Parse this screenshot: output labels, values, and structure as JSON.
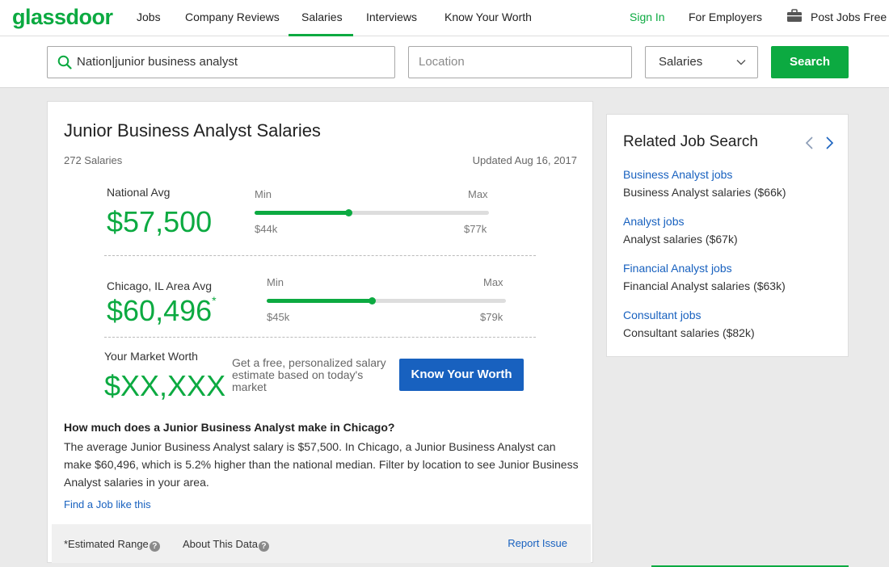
{
  "brand": {
    "logo": "glassdoor",
    "accent": "#0caa41",
    "link_color": "#1861bf"
  },
  "nav": {
    "items": [
      "Jobs",
      "Company Reviews",
      "Salaries",
      "Interviews",
      "Know Your Worth"
    ],
    "active": "Salaries",
    "sign_in": "Sign In",
    "for_employers": "For Employers",
    "post_jobs": "Post Jobs Free"
  },
  "search": {
    "keyword_value": "Nation|junior business analyst",
    "location_placeholder": "Location",
    "type_selected": "Salaries",
    "button_label": "Search"
  },
  "main": {
    "title": "Junior Business Analyst Salaries",
    "salary_count": "272 Salaries",
    "updated": "Updated Aug 16, 2017",
    "national": {
      "label": "National Avg",
      "value": "$57,500",
      "min_label": "Min",
      "max_label": "Max",
      "min": "$44k",
      "max": "$77k",
      "fill_fraction": 0.4
    },
    "local": {
      "label": "Chicago, IL Area Avg",
      "value": "$60,496",
      "asterisk": "*",
      "min_label": "Min",
      "max_label": "Max",
      "min": "$45k",
      "max": "$79k",
      "fill_fraction": 0.44
    },
    "worth": {
      "label": "Your Market Worth",
      "value": "$XX,XXX",
      "text": "Get a free, personalized salary estimate based on today's market",
      "button": "Know Your Worth"
    },
    "faq": {
      "question": "How much does a Junior Business Analyst make in Chicago?",
      "answer": "The average Junior Business Analyst salary is $57,500. In Chicago, a Junior Business Analyst can make $60,496, which is 5.2% higher than the national median. Filter by location to see Junior Business Analyst salaries in your area.",
      "link": "Find a Job like this"
    },
    "footer": {
      "estimated_range": "*Estimated Range",
      "about_data": "About This Data",
      "help_glyph": "?",
      "report": "Report Issue"
    }
  },
  "related": {
    "title": "Related Job Search",
    "items": [
      {
        "link": "Business Analyst jobs",
        "sub": "Business Analyst salaries ($66k)"
      },
      {
        "link": "Analyst jobs",
        "sub": "Analyst salaries ($67k)"
      },
      {
        "link": "Financial Analyst jobs",
        "sub": "Financial Analyst salaries ($63k)"
      },
      {
        "link": "Consultant jobs",
        "sub": "Consultant salaries ($82k)"
      }
    ]
  }
}
